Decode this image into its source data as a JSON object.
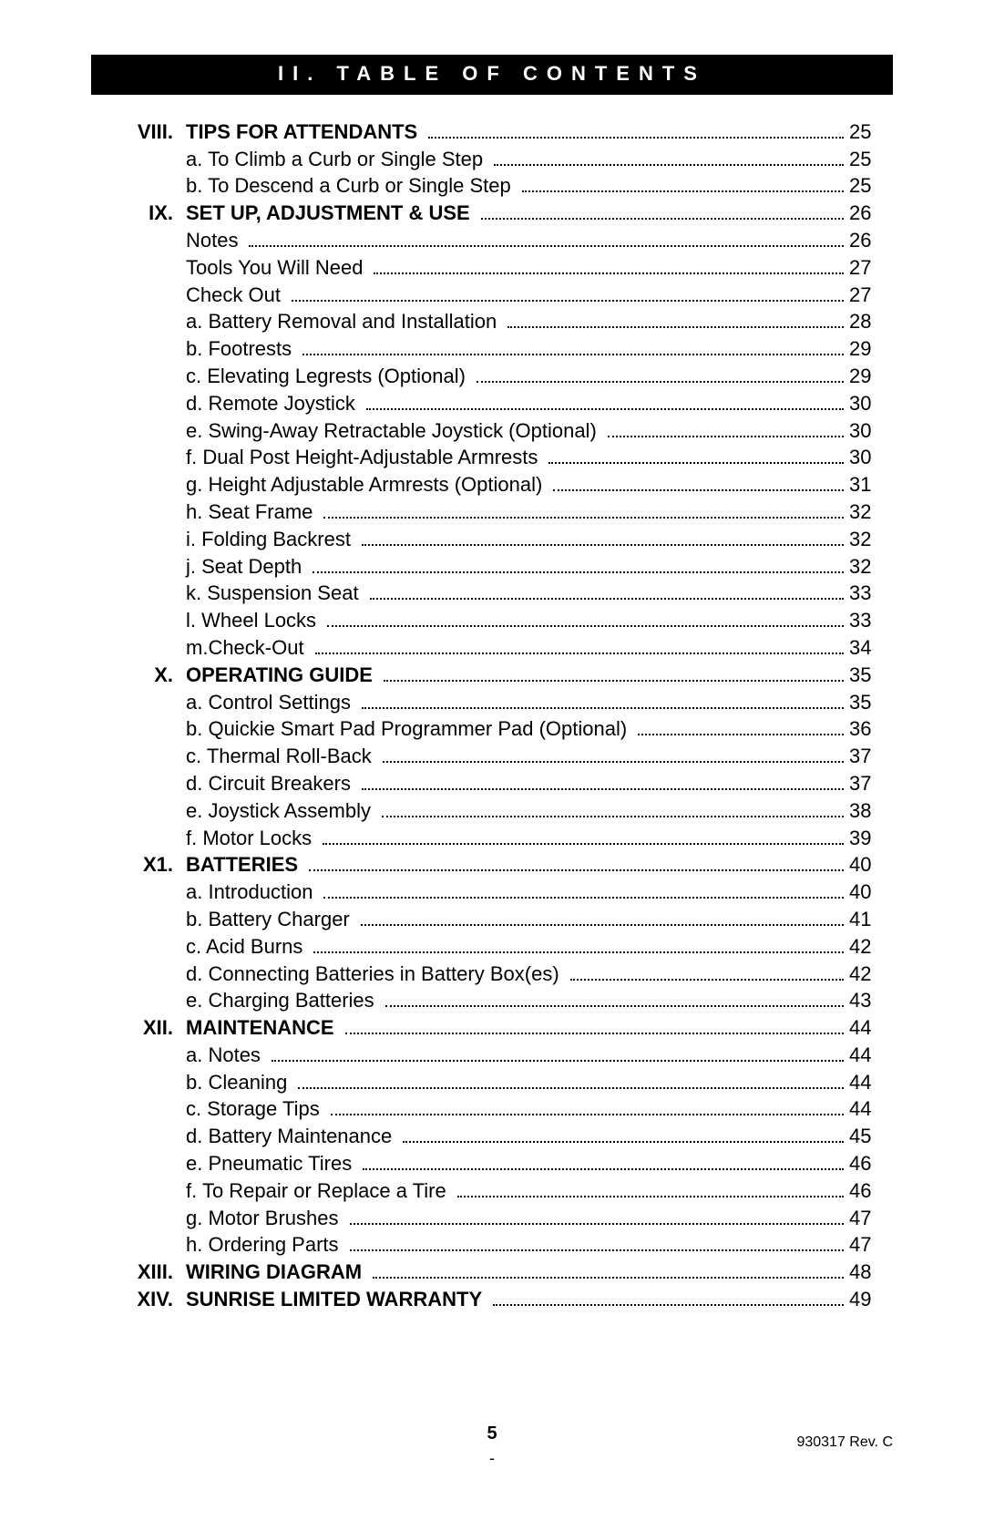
{
  "header_title": "II. TABLE OF CONTENTS",
  "footer": {
    "page_number": "5",
    "doc_rev": "930317 Rev. C"
  },
  "rows": [
    {
      "num": "VIII.",
      "label": "TIPS FOR ATTENDANTS",
      "page": "25",
      "section": true
    },
    {
      "num": "",
      "label": "a. To Climb a Curb or Single Step",
      "page": "25",
      "section": false
    },
    {
      "num": "",
      "label": "b. To Descend a Curb or Single Step",
      "page": "25",
      "section": false
    },
    {
      "num": "IX.",
      "label": "SET UP,  ADJUSTMENT & USE",
      "page": "26",
      "section": true
    },
    {
      "num": "",
      "label": "Notes",
      "page": "26",
      "section": false
    },
    {
      "num": "",
      "label": "Tools You Will Need",
      "page": "27",
      "section": false
    },
    {
      "num": "",
      "label": "Check Out",
      "page": "27",
      "section": false
    },
    {
      "num": "",
      "label": "a. Battery Removal and Installation",
      "page": "28",
      "section": false
    },
    {
      "num": "",
      "label": "b. Footrests",
      "page": "29",
      "section": false
    },
    {
      "num": "",
      "label": "c. Elevating Legrests (Optional)",
      "page": "29",
      "section": false
    },
    {
      "num": "",
      "label": "d. Remote Joystick",
      "page": "30",
      "section": false
    },
    {
      "num": "",
      "label": "e. Swing-Away Retractable Joystick (Optional)",
      "page": "30",
      "section": false
    },
    {
      "num": "",
      "label": "f.  Dual Post Height-Adjustable Armrests",
      "page": "30",
      "section": false
    },
    {
      "num": "",
      "label": "g. Height Adjustable Armrests (Optional)",
      "page": "31",
      "section": false
    },
    {
      "num": "",
      "label": "h. Seat Frame",
      "page": "32",
      "section": false
    },
    {
      "num": "",
      "label": "i.  Folding Backrest",
      "page": "32",
      "section": false
    },
    {
      "num": "",
      "label": "j.  Seat Depth",
      "page": "32",
      "section": false
    },
    {
      "num": "",
      "label": "k. Suspension Seat",
      "page": "33",
      "section": false
    },
    {
      "num": "",
      "label": "l.  Wheel Locks",
      "page": "33",
      "section": false
    },
    {
      "num": "",
      "label": "m.Check-Out",
      "page": "34",
      "section": false
    },
    {
      "num": "X.",
      "label": "OPERATING GUIDE",
      "page": "35",
      "section": true
    },
    {
      "num": "",
      "label": "a. Control Settings",
      "page": "35",
      "section": false
    },
    {
      "num": "",
      "label": "b. Quickie Smart Pad Programmer Pad (Optional)",
      "page": "36",
      "section": false
    },
    {
      "num": "",
      "label": "c. Thermal Roll-Back",
      "page": "37",
      "section": false
    },
    {
      "num": "",
      "label": "d. Circuit Breakers",
      "page": "37",
      "section": false
    },
    {
      "num": "",
      "label": "e. Joystick Assembly",
      "page": "38",
      "section": false
    },
    {
      "num": "",
      "label": "f.  Motor Locks",
      "page": "39",
      "section": false
    },
    {
      "num": "X1.",
      "label": "BATTERIES",
      "page": "40",
      "section": true
    },
    {
      "num": "",
      "label": "a. Introduction",
      "page": "40",
      "section": false
    },
    {
      "num": "",
      "label": "b. Battery Charger",
      "page": "41",
      "section": false
    },
    {
      "num": "",
      "label": "c. Acid Burns",
      "page": "42",
      "section": false
    },
    {
      "num": "",
      "label": "d. Connecting Batteries in Battery Box(es)",
      "page": "42",
      "section": false
    },
    {
      "num": "",
      "label": "e. Charging Batteries",
      "page": "43",
      "section": false
    },
    {
      "num": "XII.",
      "label": "MAINTENANCE",
      "page": "44",
      "section": true
    },
    {
      "num": "",
      "label": "a. Notes",
      "page": "44",
      "section": false
    },
    {
      "num": "",
      "label": "b. Cleaning",
      "page": "44",
      "section": false
    },
    {
      "num": "",
      "label": "c. Storage Tips",
      "page": "44",
      "section": false
    },
    {
      "num": "",
      "label": "d. Battery Maintenance",
      "page": "45",
      "section": false
    },
    {
      "num": "",
      "label": "e. Pneumatic Tires",
      "page": "46",
      "section": false
    },
    {
      "num": "",
      "label": "f.  To Repair or Replace a Tire",
      "page": "46",
      "section": false
    },
    {
      "num": "",
      "label": "g. Motor Brushes",
      "page": "47",
      "section": false
    },
    {
      "num": "",
      "label": "h. Ordering Parts",
      "page": "47",
      "section": false
    },
    {
      "num": "XIII.",
      "label": "WIRING DIAGRAM",
      "page": "48",
      "section": true
    },
    {
      "num": "XIV.",
      "label": "SUNRISE LIMITED WARRANTY",
      "page": "49",
      "section": true
    }
  ]
}
